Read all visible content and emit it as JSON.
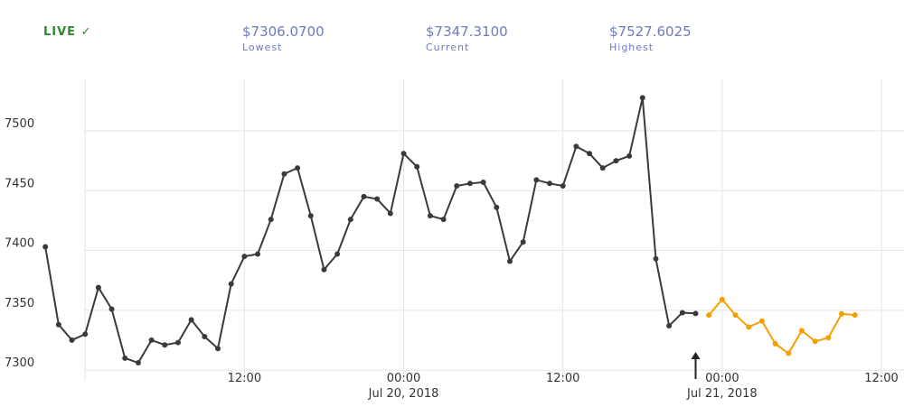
{
  "live": "LIVE ✓",
  "stats": [
    {
      "value": "$7306.0700",
      "label": "Lowest"
    },
    {
      "value": "$7347.3100",
      "label": "Current"
    },
    {
      "value": "$7527.6025",
      "label": "Highest"
    }
  ],
  "chart_data": {
    "type": "line",
    "xlim": [
      "2018-07-18T17:35",
      "2018-07-21T13:42"
    ],
    "ylim": [
      7291,
      7543
    ],
    "yticks": [
      7300,
      7350,
      7400,
      7450,
      7500
    ],
    "xticks": [
      {
        "value": "2018-07-19T00:00",
        "label": null
      },
      {
        "value": "2018-07-19T12:00",
        "label": "12:00"
      },
      {
        "value": "2018-07-20T00:00",
        "label": "00:00",
        "sublabel": "Jul 20, 2018"
      },
      {
        "value": "2018-07-20T12:00",
        "label": "12:00"
      },
      {
        "value": "2018-07-21T00:00",
        "label": "00:00",
        "sublabel": "Jul 21, 2018"
      },
      {
        "value": "2018-07-21T12:00",
        "label": "12:00"
      }
    ],
    "grid": true,
    "series": [
      {
        "color": "#3a3a3a",
        "start": "2018-07-18T21:00",
        "values": [
          7403,
          7338,
          7325,
          7330,
          7369,
          7351,
          7310,
          7306.07,
          7325,
          7321,
          7323,
          7342,
          7328,
          7318,
          7372,
          7395,
          7397,
          7426,
          7464,
          7469,
          7429,
          7384,
          7397,
          7426,
          7445,
          7443,
          7431,
          7481,
          7470,
          7429,
          7426,
          7454,
          7456,
          7457,
          7436,
          7391,
          7407,
          7459,
          7456,
          7454,
          7487,
          7481,
          7469,
          7475,
          7479,
          7527.6025,
          7393,
          7337,
          7348,
          7347.31
        ]
      },
      {
        "color": "#f5a000",
        "start": "2018-07-20T23:00",
        "values": [
          7346,
          7359,
          7346,
          7336,
          7341,
          7322,
          7314,
          7333,
          7324,
          7327,
          7347,
          7346
        ]
      }
    ]
  }
}
